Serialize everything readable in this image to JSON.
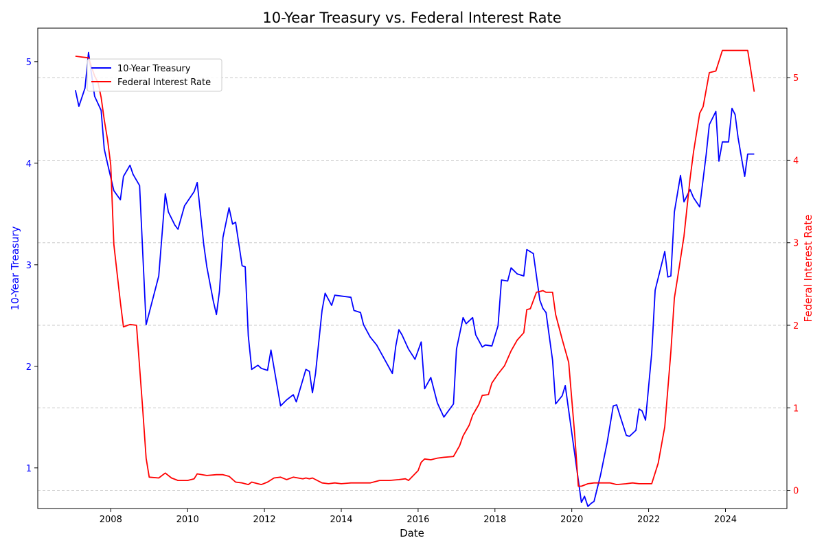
{
  "chart_data": {
    "type": "line",
    "title": "10-Year Treasury vs. Federal Interest Rate",
    "xlabel": "Date",
    "ylabel_left": "10-Year Treasury",
    "ylabel_right": "Federal Interest Rate",
    "xlim": [
      2006.1,
      2025.6
    ],
    "ylim_left": [
      0.6,
      5.33
    ],
    "ylim_right": [
      -0.22,
      5.6
    ],
    "x_ticks": [
      2008,
      2010,
      2012,
      2014,
      2016,
      2018,
      2020,
      2022,
      2024
    ],
    "x_tick_labels": [
      "2008",
      "2010",
      "2012",
      "2014",
      "2016",
      "2018",
      "2020",
      "2022",
      "2024"
    ],
    "y_left_ticks": [
      1,
      2,
      3,
      4,
      5
    ],
    "y_left_tick_labels": [
      "1",
      "2",
      "3",
      "4",
      "5"
    ],
    "y_right_ticks": [
      0,
      1,
      2,
      3,
      4,
      5
    ],
    "y_right_tick_labels": [
      "0",
      "1",
      "2",
      "3",
      "4",
      "5"
    ],
    "grid": "horizontal dashed",
    "legend_position": "top-left",
    "colors": {
      "treasury": "#0000ff",
      "fed": "#ff0000",
      "grid": "#c8c8c8"
    },
    "series": [
      {
        "name": "10-Year Treasury",
        "axis": "left",
        "color": "#0000ff",
        "x": [
          2007.08,
          2007.17,
          2007.33,
          2007.42,
          2007.58,
          2007.75,
          2007.83,
          2007.92,
          2008.08,
          2008.25,
          2008.33,
          2008.5,
          2008.58,
          2008.75,
          2008.92,
          2009.25,
          2009.42,
          2009.5,
          2009.67,
          2009.75,
          2009.92,
          2010.17,
          2010.25,
          2010.42,
          2010.5,
          2010.67,
          2010.75,
          2010.83,
          2010.92,
          2011.08,
          2011.17,
          2011.25,
          2011.42,
          2011.5,
          2011.58,
          2011.67,
          2011.83,
          2011.92,
          2012.08,
          2012.17,
          2012.42,
          2012.58,
          2012.75,
          2012.83,
          2013.08,
          2013.17,
          2013.25,
          2013.33,
          2013.5,
          2013.58,
          2013.75,
          2013.83,
          2014.25,
          2014.33,
          2014.5,
          2014.58,
          2014.75,
          2014.92,
          2015.33,
          2015.42,
          2015.5,
          2015.58,
          2015.75,
          2015.92,
          2016.08,
          2016.17,
          2016.33,
          2016.5,
          2016.67,
          2016.92,
          2017.0,
          2017.17,
          2017.25,
          2017.42,
          2017.5,
          2017.67,
          2017.75,
          2017.92,
          2018.08,
          2018.17,
          2018.33,
          2018.42,
          2018.58,
          2018.75,
          2018.83,
          2019.0,
          2019.17,
          2019.25,
          2019.33,
          2019.5,
          2019.58,
          2019.75,
          2019.83,
          2020.25,
          2020.33,
          2020.42,
          2020.5,
          2020.58,
          2020.75,
          2020.92,
          2021.08,
          2021.17,
          2021.25,
          2021.42,
          2021.5,
          2021.67,
          2021.75,
          2021.83,
          2021.92,
          2022.08,
          2022.17,
          2022.42,
          2022.5,
          2022.58,
          2022.67,
          2022.83,
          2022.92,
          2023.08,
          2023.17,
          2023.33,
          2023.5,
          2023.58,
          2023.75,
          2023.83,
          2023.92,
          2024.08,
          2024.17,
          2024.25,
          2024.33,
          2024.5,
          2024.58,
          2024.75
        ],
        "values": [
          4.72,
          4.56,
          4.74,
          5.09,
          4.66,
          4.52,
          4.14,
          3.99,
          3.73,
          3.64,
          3.87,
          3.98,
          3.89,
          3.78,
          2.41,
          2.89,
          3.7,
          3.52,
          3.39,
          3.35,
          3.58,
          3.72,
          3.81,
          3.2,
          2.98,
          2.64,
          2.51,
          2.74,
          3.27,
          3.56,
          3.4,
          3.42,
          2.99,
          2.98,
          2.3,
          1.97,
          2.01,
          1.98,
          1.96,
          2.16,
          1.61,
          1.67,
          1.72,
          1.65,
          1.97,
          1.95,
          1.74,
          1.93,
          2.55,
          2.72,
          2.6,
          2.7,
          2.68,
          2.55,
          2.53,
          2.41,
          2.29,
          2.21,
          1.93,
          2.2,
          2.36,
          2.31,
          2.17,
          2.07,
          2.24,
          1.78,
          1.89,
          1.64,
          1.5,
          1.63,
          2.17,
          2.48,
          2.42,
          2.48,
          2.31,
          2.19,
          2.21,
          2.2,
          2.4,
          2.85,
          2.84,
          2.97,
          2.91,
          2.89,
          3.15,
          3.11,
          2.65,
          2.57,
          2.53,
          2.06,
          1.63,
          1.71,
          1.81,
          0.66,
          0.72,
          0.62,
          0.65,
          0.67,
          0.93,
          1.25,
          1.61,
          1.62,
          1.52,
          1.32,
          1.31,
          1.37,
          1.58,
          1.56,
          1.47,
          2.13,
          2.75,
          3.13,
          2.88,
          2.89,
          3.52,
          3.88,
          3.62,
          3.74,
          3.66,
          3.57,
          4.09,
          4.38,
          4.51,
          4.02,
          4.21,
          4.21,
          4.54,
          4.48,
          4.25,
          3.87,
          4.09,
          4.09
        ]
      },
      {
        "name": "Federal Interest Rate",
        "axis": "right",
        "color": "#ff0000",
        "x": [
          2007.08,
          2007.25,
          2007.42,
          2007.58,
          2007.67,
          2007.75,
          2007.83,
          2007.92,
          2008.0,
          2008.08,
          2008.17,
          2008.25,
          2008.33,
          2008.5,
          2008.67,
          2008.83,
          2008.92,
          2009.0,
          2009.25,
          2009.42,
          2009.58,
          2009.75,
          2010.0,
          2010.17,
          2010.25,
          2010.5,
          2010.75,
          2010.92,
          2011.08,
          2011.25,
          2011.42,
          2011.58,
          2011.67,
          2011.83,
          2011.92,
          2012.08,
          2012.25,
          2012.42,
          2012.58,
          2012.75,
          2013.0,
          2013.08,
          2013.17,
          2013.25,
          2013.5,
          2013.67,
          2013.83,
          2014.0,
          2014.25,
          2014.5,
          2014.75,
          2015.0,
          2015.25,
          2015.5,
          2015.67,
          2015.75,
          2016.0,
          2016.08,
          2016.17,
          2016.33,
          2016.5,
          2016.67,
          2016.92,
          2017.08,
          2017.17,
          2017.33,
          2017.42,
          2017.58,
          2017.67,
          2017.83,
          2017.92,
          2018.08,
          2018.25,
          2018.42,
          2018.58,
          2018.75,
          2018.83,
          2018.92,
          2019.08,
          2019.17,
          2019.25,
          2019.33,
          2019.5,
          2019.58,
          2019.75,
          2019.92,
          2020.08,
          2020.17,
          2020.25,
          2020.42,
          2020.58,
          2020.75,
          2021.0,
          2021.17,
          2021.42,
          2021.58,
          2021.75,
          2022.08,
          2022.25,
          2022.42,
          2022.58,
          2022.67,
          2022.75,
          2022.92,
          2023.08,
          2023.17,
          2023.33,
          2023.42,
          2023.58,
          2023.75,
          2023.92,
          2024.0,
          2024.25,
          2024.5,
          2024.58,
          2024.75
        ],
        "values": [
          5.26,
          5.25,
          5.24,
          5.02,
          4.94,
          4.76,
          4.49,
          4.24,
          3.94,
          2.98,
          2.61,
          2.28,
          1.98,
          2.01,
          2.0,
          1.0,
          0.39,
          0.16,
          0.15,
          0.21,
          0.15,
          0.12,
          0.12,
          0.14,
          0.2,
          0.18,
          0.19,
          0.19,
          0.17,
          0.1,
          0.09,
          0.07,
          0.1,
          0.08,
          0.07,
          0.1,
          0.15,
          0.16,
          0.13,
          0.16,
          0.14,
          0.15,
          0.14,
          0.15,
          0.09,
          0.08,
          0.09,
          0.08,
          0.09,
          0.09,
          0.09,
          0.12,
          0.12,
          0.13,
          0.14,
          0.12,
          0.24,
          0.34,
          0.38,
          0.37,
          0.39,
          0.4,
          0.41,
          0.54,
          0.66,
          0.79,
          0.91,
          1.04,
          1.15,
          1.16,
          1.3,
          1.41,
          1.51,
          1.69,
          1.82,
          1.91,
          2.19,
          2.2,
          2.4,
          2.41,
          2.42,
          2.4,
          2.4,
          2.13,
          1.83,
          1.55,
          0.65,
          0.05,
          0.05,
          0.08,
          0.09,
          0.09,
          0.09,
          0.07,
          0.08,
          0.09,
          0.08,
          0.08,
          0.33,
          0.77,
          1.68,
          2.33,
          2.56,
          3.08,
          3.78,
          4.1,
          4.57,
          4.65,
          5.06,
          5.08,
          5.33,
          5.33,
          5.33,
          5.33,
          5.33,
          4.83
        ]
      }
    ]
  }
}
